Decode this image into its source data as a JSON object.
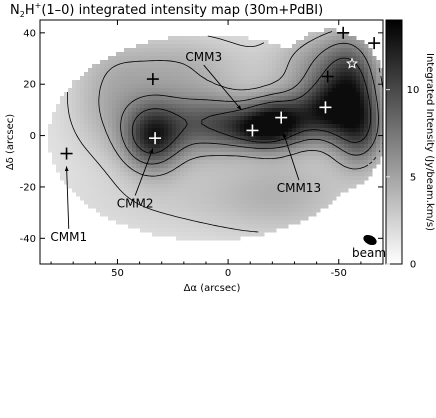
{
  "chart_data": {
    "type": "heatmap",
    "title_main": "N",
    "title_sub": "2",
    "title_mid": "H",
    "title_sup": "+",
    "title_rest": "(1–0) integrated intensity map (30m+PdBI)",
    "xlabel": "Δα (arcsec)",
    "ylabel": "Δδ (arcsec)",
    "xlim": [
      85,
      -70
    ],
    "ylim": [
      -50,
      45
    ],
    "x_ticks": [
      50,
      0,
      -50
    ],
    "y_ticks": [
      40,
      20,
      0,
      -20,
      -40
    ],
    "colorbar": {
      "label": "Integrated Intensity (Jy/beam.km/s)",
      "range": [
        0,
        14
      ],
      "ticks": [
        0,
        5,
        10
      ],
      "colormap": "grayscale (white low, black high)"
    },
    "contour_levels_note": "",
    "emission_blobs": [
      {
        "x": 35,
        "y": 0,
        "sx": 9,
        "sy": 9,
        "amp": 9
      },
      {
        "x": 25,
        "y": 10,
        "sx": 25,
        "sy": 14,
        "amp": 3
      },
      {
        "x": 15,
        "y": 5,
        "sx": 12,
        "sy": 8,
        "amp": 4
      },
      {
        "x": 0,
        "y": 5,
        "sx": 10,
        "sy": 7,
        "amp": 4
      },
      {
        "x": -22,
        "y": 6,
        "sx": 10,
        "sy": 7,
        "amp": 11
      },
      {
        "x": -12,
        "y": 3,
        "sx": 9,
        "sy": 5,
        "amp": 5
      },
      {
        "x": -42,
        "y": 10,
        "sx": 9,
        "sy": 8,
        "amp": 8
      },
      {
        "x": -55,
        "y": 18,
        "sx": 9,
        "sy": 14,
        "amp": 9
      },
      {
        "x": -40,
        "y": 28,
        "sx": 14,
        "sy": 10,
        "amp": 4
      },
      {
        "x": -60,
        "y": 2,
        "sx": 8,
        "sy": 10,
        "amp": 6
      },
      {
        "x": 25,
        "y": 30,
        "sx": 25,
        "sy": 8,
        "amp": 2
      },
      {
        "x": 55,
        "y": 15,
        "sx": 12,
        "sy": 15,
        "amp": 2
      },
      {
        "x": 5,
        "y": -25,
        "sx": 40,
        "sy": 10,
        "amp": 1.5
      },
      {
        "x": -25,
        "y": -20,
        "sx": 20,
        "sy": 12,
        "amp": 2
      }
    ],
    "sources": [
      {
        "name": "CMM1",
        "x": 73,
        "y": -7,
        "marker": "plus-black"
      },
      {
        "name": "CMM2",
        "x": 33,
        "y": -1,
        "marker": "plus-white"
      },
      {
        "name": "CMM3",
        "x": 12,
        "y": 8,
        "marker": "none"
      },
      {
        "name": "CMM13",
        "x": -24,
        "y": 7,
        "marker": "plus-white"
      }
    ],
    "extra_markers": [
      {
        "x": 34,
        "y": 22,
        "marker": "plus-black"
      },
      {
        "x": -11,
        "y": 2,
        "marker": "plus-white"
      },
      {
        "x": -44,
        "y": 11,
        "marker": "plus-white"
      },
      {
        "x": -52,
        "y": 40,
        "marker": "plus-black"
      },
      {
        "x": -66,
        "y": 36,
        "marker": "plus-black"
      },
      {
        "x": -45,
        "y": 23,
        "marker": "plus-black"
      },
      {
        "x": -56,
        "y": 28,
        "marker": "star-white"
      }
    ],
    "labels": [
      {
        "text": "CMM1",
        "lx": 72,
        "ly": -41,
        "ax": 73,
        "ay": -12
      },
      {
        "text": "CMM2",
        "lx": 42,
        "ly": -28,
        "ax": 34,
        "ay": -5
      },
      {
        "text": "CMM3",
        "lx": 11,
        "ly": 29,
        "ax": -6,
        "ay": 10
      },
      {
        "text": "CMM13",
        "lx": -32,
        "ly": -22,
        "ax": -25,
        "ay": 1
      }
    ],
    "beam": {
      "label": "beam"
    }
  }
}
